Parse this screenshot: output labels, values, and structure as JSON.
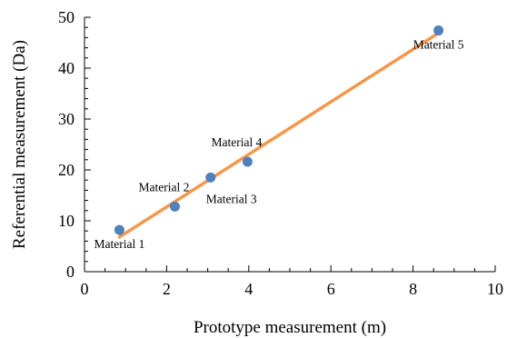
{
  "chart_data": {
    "type": "scatter",
    "title": "",
    "xlabel": "Prototype measurement (m)",
    "ylabel": "Referential measurement (Da)",
    "xlim": [
      0,
      10
    ],
    "ylim": [
      0,
      50
    ],
    "x_ticks": [
      "0",
      "2",
      "4",
      "6",
      "8",
      "10"
    ],
    "y_ticks": [
      "0",
      "10",
      "20",
      "30",
      "40",
      "50"
    ],
    "grid": false,
    "series": [
      {
        "color": "#4f81bd",
        "points": [
          {
            "x": 0.85,
            "y": 8.2,
            "label": "Material 1",
            "label_pos": "below"
          },
          {
            "x": 2.2,
            "y": 12.8,
            "label": "Material 2",
            "label_pos": "above-left"
          },
          {
            "x": 3.07,
            "y": 18.5,
            "label": "Material 3",
            "label_pos": "below-right"
          },
          {
            "x": 3.97,
            "y": 21.6,
            "label": "Material 4",
            "label_pos": "above-left"
          },
          {
            "x": 8.62,
            "y": 47.4,
            "label": "Material 5",
            "label_pos": "below"
          }
        ]
      }
    ],
    "trendline": {
      "color": "#f79646",
      "from": {
        "x": 0.85,
        "y": 6.8
      },
      "to": {
        "x": 8.62,
        "y": 46.9
      }
    }
  }
}
